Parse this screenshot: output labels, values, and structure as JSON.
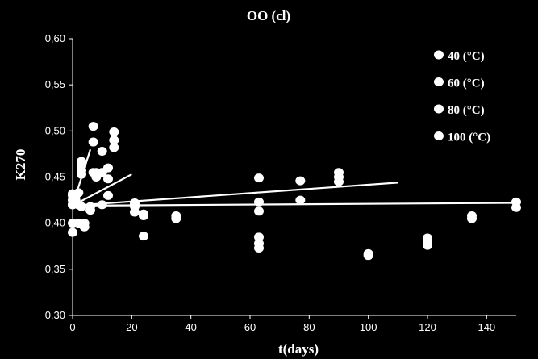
{
  "chart_data": {
    "type": "scatter",
    "title": "OO (cl)",
    "xlabel": "t(days)",
    "ylabel": "K270",
    "xlim": [
      0,
      150
    ],
    "ylim": [
      0.3,
      0.6
    ],
    "x_ticks": [
      "0",
      "20",
      "40",
      "60",
      "80",
      "100",
      "120",
      "140"
    ],
    "y_ticks": [
      "0,30",
      "0,35",
      "0,40",
      "0,45",
      "0,50",
      "0,55",
      "0,60"
    ],
    "grid": false,
    "legend_position": "top-right",
    "series": [
      {
        "name": "40 (°C)",
        "points": [
          [
            0,
            0.42
          ],
          [
            0,
            0.43
          ],
          [
            0,
            0.4
          ],
          [
            0,
            0.39
          ],
          [
            21,
            0.412
          ],
          [
            21,
            0.42
          ],
          [
            24,
            0.408
          ],
          [
            24,
            0.386
          ],
          [
            35,
            0.408
          ],
          [
            35,
            0.405
          ],
          [
            63,
            0.449
          ],
          [
            63,
            0.423
          ],
          [
            63,
            0.413
          ],
          [
            63,
            0.385
          ],
          [
            63,
            0.378
          ],
          [
            63,
            0.373
          ],
          [
            100,
            0.367
          ],
          [
            100,
            0.365
          ],
          [
            120,
            0.384
          ],
          [
            120,
            0.38
          ],
          [
            120,
            0.376
          ],
          [
            135,
            0.408
          ],
          [
            135,
            0.405
          ],
          [
            150,
            0.423
          ],
          [
            150,
            0.417
          ]
        ],
        "fit": [
          [
            0,
            0.419
          ],
          [
            150,
            0.422
          ]
        ]
      },
      {
        "name": "60 (°C)",
        "points": [
          [
            0,
            0.425
          ],
          [
            2,
            0.42
          ],
          [
            3,
            0.418
          ],
          [
            21,
            0.422
          ],
          [
            21,
            0.418
          ],
          [
            24,
            0.41
          ],
          [
            77,
            0.446
          ],
          [
            77,
            0.425
          ],
          [
            90,
            0.455
          ],
          [
            90,
            0.45
          ],
          [
            90,
            0.445
          ]
        ],
        "fit": [
          [
            0,
            0.419
          ],
          [
            110,
            0.444
          ]
        ]
      },
      {
        "name": "80 (°C)",
        "points": [
          [
            0,
            0.432
          ],
          [
            1,
            0.425
          ],
          [
            2,
            0.433
          ],
          [
            2,
            0.42
          ],
          [
            2,
            0.4
          ],
          [
            4,
            0.4
          ],
          [
            4,
            0.396
          ],
          [
            6,
            0.418
          ],
          [
            6,
            0.414
          ],
          [
            8,
            0.455
          ],
          [
            8,
            0.45
          ],
          [
            10,
            0.455
          ],
          [
            10,
            0.42
          ],
          [
            12,
            0.46
          ],
          [
            12,
            0.448
          ],
          [
            12,
            0.43
          ],
          [
            14,
            0.499
          ],
          [
            14,
            0.49
          ],
          [
            14,
            0.482
          ]
        ],
        "fit": [
          [
            0,
            0.419
          ],
          [
            20,
            0.453
          ]
        ]
      },
      {
        "name": "100 (°C)",
        "points": [
          [
            0,
            0.42
          ],
          [
            1,
            0.43
          ],
          [
            3,
            0.467
          ],
          [
            3,
            0.462
          ],
          [
            3,
            0.457
          ],
          [
            3,
            0.453
          ],
          [
            7,
            0.505
          ],
          [
            7,
            0.488
          ],
          [
            7,
            0.455
          ],
          [
            10,
            0.478
          ],
          [
            10,
            0.455
          ]
        ],
        "fit": [
          [
            0,
            0.419
          ],
          [
            6,
            0.48
          ]
        ]
      }
    ]
  }
}
